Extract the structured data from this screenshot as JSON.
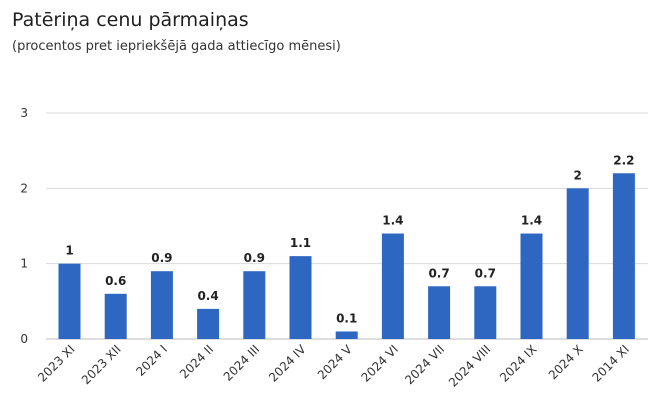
{
  "chart_data": {
    "type": "bar",
    "title": "Patēriņa cenu pārmaiņas",
    "subtitle": "(procentos pret iepriekšējā gada attiecīgo mēnesi)",
    "xlabel": "",
    "ylabel": "",
    "ylim": [
      0,
      3
    ],
    "yticks": [
      0,
      1,
      2,
      3
    ],
    "grid": true,
    "categories": [
      "2023 XI",
      "2023 XII",
      "2024 I",
      "2024 II",
      "2024 III",
      "2024 IV",
      "2024 V",
      "2024 VI",
      "2024 VII",
      "2024 VIII",
      "2024 IX",
      "2024 X",
      "2014 XI"
    ],
    "values": [
      1,
      0.6,
      0.9,
      0.4,
      0.9,
      1.1,
      0.1,
      1.4,
      0.7,
      0.7,
      1.4,
      2,
      2.2
    ],
    "value_labels": [
      "1",
      "0.6",
      "0.9",
      "0.4",
      "0.9",
      "1.1",
      "0.1",
      "1.4",
      "0.7",
      "0.7",
      "1.4",
      "2",
      "2.2"
    ],
    "bar_color": "#2e67c2",
    "grid_color": "#d9d9d9"
  }
}
